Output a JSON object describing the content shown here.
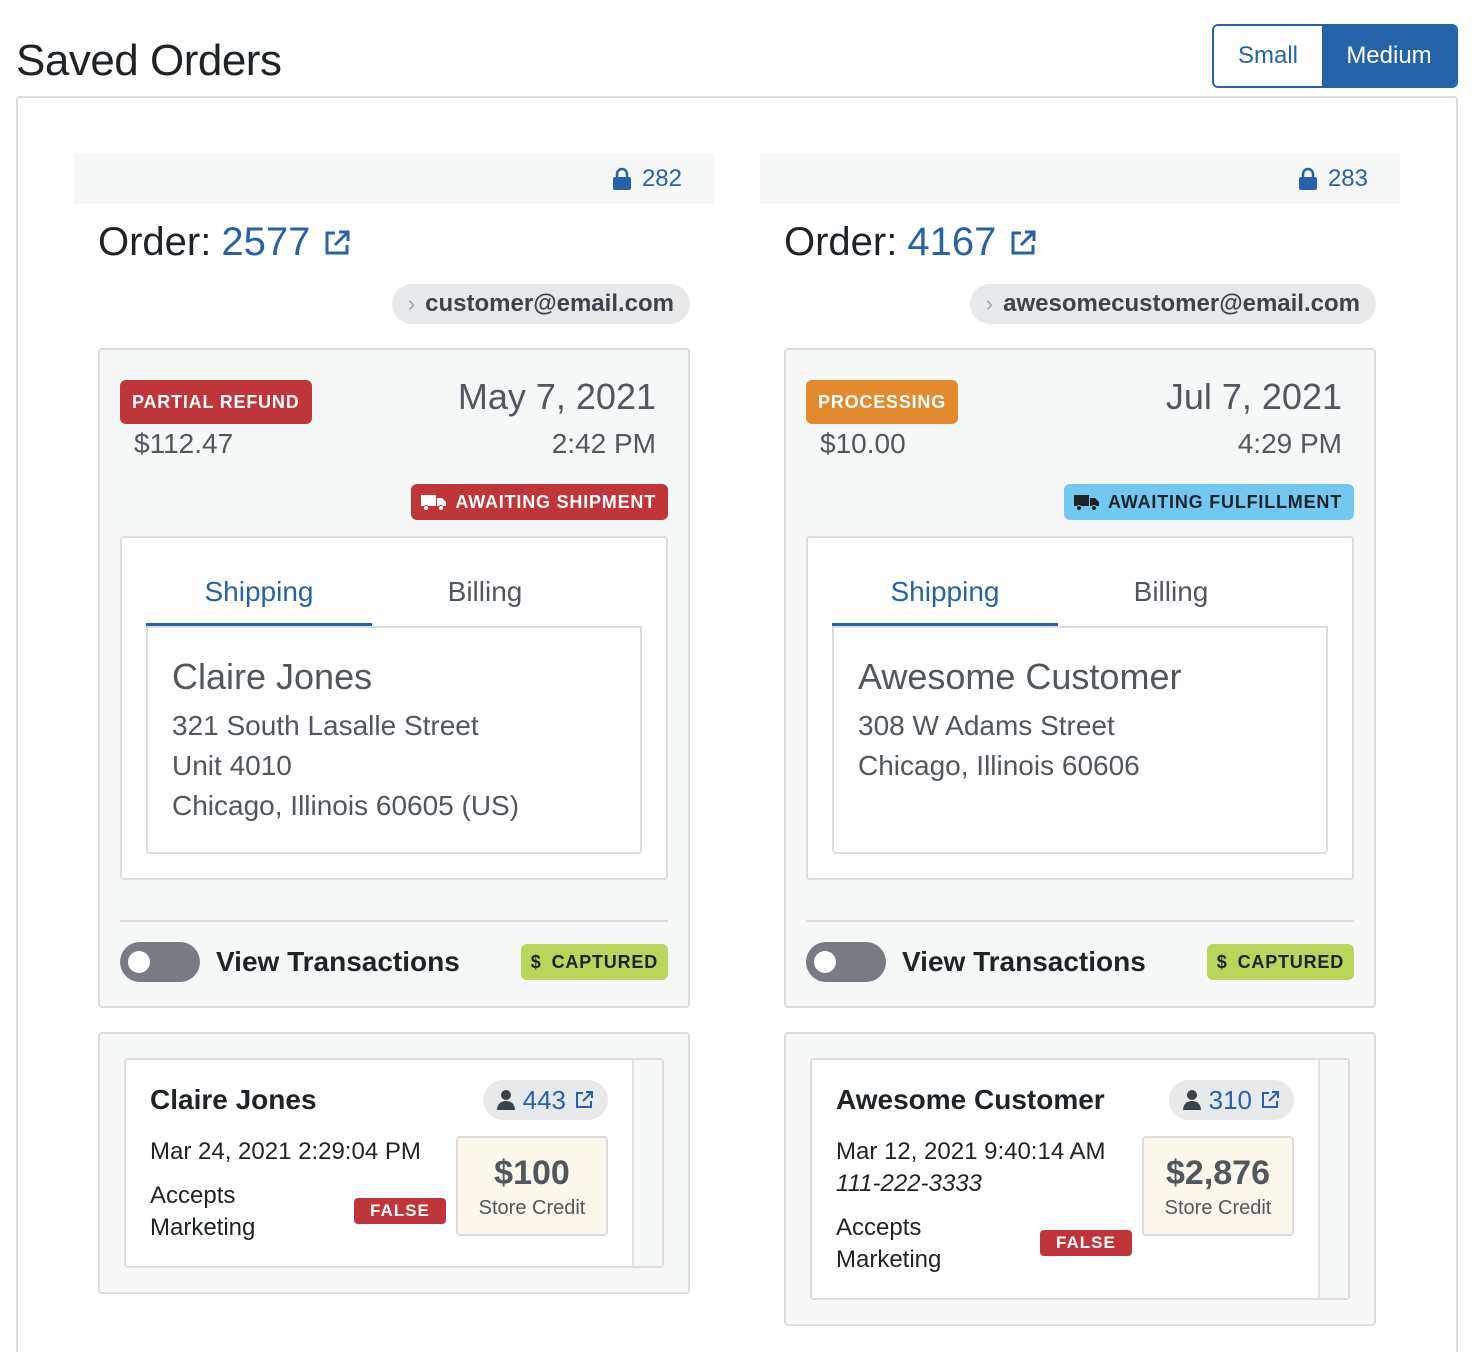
{
  "page_title": "Saved Orders",
  "size_toggle": {
    "small": "Small",
    "medium": "Medium",
    "selected": "Medium"
  },
  "orders": [
    {
      "lock_id": "282",
      "order_label": "Order:",
      "order_number": "2577",
      "email": "customer@email.com",
      "status": "PARTIAL REFUND",
      "amount": "$112.47",
      "date": "May 7, 2021",
      "time": "2:42 PM",
      "fulfillment": "AWAITING SHIPMENT",
      "tabs": {
        "shipping": "Shipping",
        "billing": "Billing",
        "active": "Shipping"
      },
      "address": {
        "name": "Claire Jones",
        "line1": "321 South Lasalle Street",
        "line2": "Unit 4010",
        "line3": "Chicago, Illinois 60605 (US)"
      },
      "toggle_label": "View Transactions",
      "payment": "CAPTURED",
      "customer": {
        "name": "Claire Jones",
        "id": "443",
        "created": "Mar 24, 2021 2:29:04 PM",
        "phone": "",
        "accepts_label_1": "Accepts",
        "accepts_label_2": "Marketing",
        "accepts_value": "FALSE",
        "credit_amount": "$100",
        "credit_label": "Store Credit"
      }
    },
    {
      "lock_id": "283",
      "order_label": "Order:",
      "order_number": "4167",
      "email": "awesomecustomer@email.com",
      "status": "PROCESSING",
      "amount": "$10.00",
      "date": "Jul 7, 2021",
      "time": "4:29 PM",
      "fulfillment": "AWAITING FULFILLMENT",
      "tabs": {
        "shipping": "Shipping",
        "billing": "Billing",
        "active": "Shipping"
      },
      "address": {
        "name": "Awesome Customer",
        "line1": "308 W Adams Street",
        "line2": "Chicago, Illinois 60606",
        "line3": ""
      },
      "toggle_label": "View Transactions",
      "payment": "CAPTURED",
      "customer": {
        "name": "Awesome Customer",
        "id": "310",
        "created": "Mar 12, 2021 9:40:14 AM",
        "phone": "111-222-3333",
        "accepts_label_1": "Accepts",
        "accepts_label_2": "Marketing",
        "accepts_value": "FALSE",
        "credit_amount": "$2,876",
        "credit_label": "Store Credit"
      }
    }
  ],
  "colors": {
    "accent": "#2563a8",
    "refund": "#c0353a",
    "processing": "#e38a2f",
    "fulfillment": "#72c8f0",
    "captured": "#b9d65a"
  }
}
